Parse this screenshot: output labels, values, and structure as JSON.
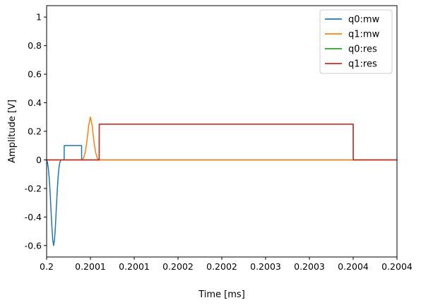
{
  "chart_data": {
    "type": "line",
    "title": "",
    "xlabel": "Time [ms]",
    "ylabel": "Amplitude [V]",
    "xlim": [
      0.2,
      0.2004
    ],
    "ylim": [
      -0.68,
      1.08
    ],
    "x_ticks": [
      {
        "value": 0.2,
        "label": "0.2"
      },
      {
        "value": 0.20005,
        "label": "0.2001"
      },
      {
        "value": 0.2001,
        "label": "0.2001"
      },
      {
        "value": 0.20015,
        "label": "0.2002"
      },
      {
        "value": 0.2002,
        "label": "0.2002"
      },
      {
        "value": 0.20025,
        "label": "0.2003"
      },
      {
        "value": 0.2003,
        "label": "0.2003"
      },
      {
        "value": 0.20035,
        "label": "0.2004"
      },
      {
        "value": 0.2004,
        "label": "0.2004"
      }
    ],
    "y_ticks": [
      {
        "value": -0.6,
        "label": "-0.6"
      },
      {
        "value": -0.4,
        "label": "-0.4"
      },
      {
        "value": -0.2,
        "label": "-0.2"
      },
      {
        "value": 0,
        "label": "0"
      },
      {
        "value": 0.2,
        "label": "0.2"
      },
      {
        "value": 0.4,
        "label": "0.4"
      },
      {
        "value": 0.6,
        "label": "0.6"
      },
      {
        "value": 0.8,
        "label": "0.8"
      },
      {
        "value": 1.0,
        "label": "1"
      }
    ],
    "grid": false,
    "legend_position": "top-right",
    "series": [
      {
        "name": "q0:mw",
        "color": "#1f77b4",
        "x": [
          0.2,
          0.200001,
          0.200002,
          0.200003,
          0.200004,
          0.200005,
          0.200006,
          0.200007,
          0.200008,
          0.200009,
          0.20001,
          0.200011,
          0.200012,
          0.200013,
          0.200014,
          0.200015,
          0.200016,
          0.200017,
          0.200018,
          0.200019,
          0.20002,
          0.2000201,
          0.200025,
          0.20003,
          0.200035,
          0.2000399,
          0.20004,
          0.2004
        ],
        "y": [
          0,
          -0.02,
          -0.06,
          -0.13,
          -0.23,
          -0.35,
          -0.47,
          -0.56,
          -0.6,
          -0.56,
          -0.47,
          -0.35,
          -0.23,
          -0.13,
          -0.06,
          -0.02,
          -0.005,
          0,
          0,
          0,
          0,
          0.1,
          0.1,
          0.1,
          0.1,
          0.1,
          0,
          0
        ]
      },
      {
        "name": "q1:mw",
        "color": "#ff7f0e",
        "x": [
          0.2,
          0.20004,
          0.200042,
          0.200044,
          0.200046,
          0.200048,
          0.20005,
          0.200052,
          0.200054,
          0.200056,
          0.200058,
          0.20006,
          0.2004
        ],
        "y": [
          0,
          0,
          0.01,
          0.05,
          0.13,
          0.24,
          0.3,
          0.24,
          0.13,
          0.05,
          0.01,
          0,
          0
        ]
      },
      {
        "name": "q0:res",
        "color": "#2ca02c",
        "x": [
          0.2,
          0.20006,
          0.2000601,
          0.20035,
          0.2003501,
          0.2004
        ],
        "y": [
          0,
          0,
          0.25,
          0.25,
          0,
          0
        ]
      },
      {
        "name": "q1:res",
        "color": "#d62728",
        "x": [
          0.2,
          0.20006,
          0.2000601,
          0.20035,
          0.2003501,
          0.2004
        ],
        "y": [
          0,
          0,
          0.25,
          0.25,
          0,
          0
        ]
      }
    ]
  }
}
